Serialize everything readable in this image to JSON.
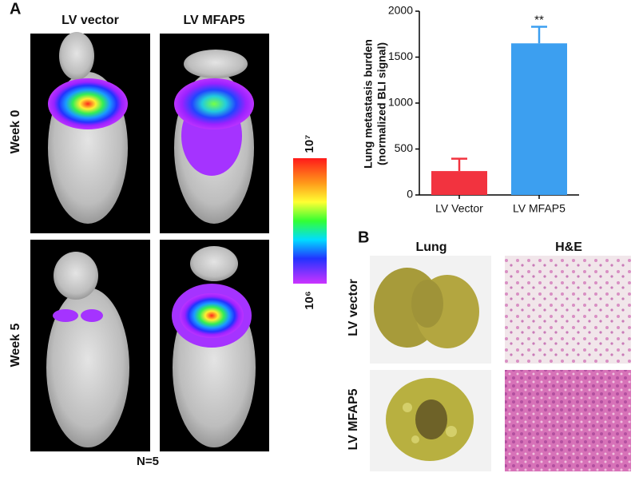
{
  "figure": {
    "panel_a": {
      "label": "A",
      "columns": [
        "LV vector",
        "LV MFAP5"
      ],
      "rows": [
        "Week 0",
        "Week 5"
      ],
      "colorbar": {
        "max": "10⁷",
        "min": "10⁶"
      },
      "note": "N=5"
    },
    "panel_b": {
      "label": "B",
      "columns": [
        "Lung",
        "H&E"
      ],
      "rows": [
        "LV vector",
        "LV MFAP5"
      ]
    }
  },
  "chart_data": {
    "type": "bar",
    "y_label": [
      "Lung metastasis burden",
      "(normalized BLI signal)"
    ],
    "categories": [
      "LV Vector",
      "LV MFAP5"
    ],
    "values": [
      260,
      1650
    ],
    "errors": [
      135,
      180
    ],
    "colors": [
      "#f2333f",
      "#3c9ff0"
    ],
    "ylim": [
      0,
      2000
    ],
    "yticks": [
      0,
      500,
      1000,
      1500,
      2000
    ],
    "annotation": "**"
  }
}
